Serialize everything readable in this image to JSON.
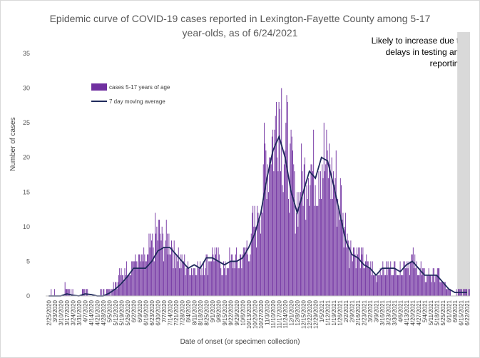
{
  "chart_data": {
    "type": "bar",
    "title": "Epidemic curve of COVID-19 cases reported in Lexington-Fayette County among 5-17 year-olds, as of 6/24/2021",
    "title_lines": [
      "Epidemic curve of COVID-19 cases reported in Lexington-Fayette County among 5-17",
      "year-olds, as of 6/24/2021"
    ],
    "xlabel": "Date of onset (or specimen collection)",
    "ylabel": "Number of cases",
    "ylim": [
      0,
      35
    ],
    "yticks": [
      0,
      5,
      10,
      15,
      20,
      25,
      30,
      35
    ],
    "grid": false,
    "legend_position": "top-left",
    "colors": {
      "bar": "#7030a0",
      "line": "#1f2a5c",
      "shaded_region": "#d9d9d9"
    },
    "x_tick_labels": [
      "2/25/2020",
      "3/3/2020",
      "3/10/2020",
      "3/17/2020",
      "3/24/2020",
      "3/31/2020",
      "4/7/2020",
      "4/14/2020",
      "4/21/2020",
      "4/28/2020",
      "5/5/2020",
      "5/12/2020",
      "5/19/2020",
      "5/26/2020",
      "6/2/2020",
      "6/9/2020",
      "6/16/2020",
      "6/23/2020",
      "6/30/2020",
      "7/7/2020",
      "7/14/2020",
      "7/21/2020",
      "7/28/2020",
      "8/4/2020",
      "8/11/2020",
      "8/18/2020",
      "8/25/2020",
      "9/1/2020",
      "9/8/2020",
      "9/15/2020",
      "9/22/2020",
      "9/29/2020",
      "10/6/2020",
      "10/13/2020",
      "10/20/2020",
      "10/27/2020",
      "11/3/2020",
      "11/10/2020",
      "11/17/2020",
      "11/24/2020",
      "12/1/2020",
      "12/8/2020",
      "12/15/2020",
      "12/22/2020",
      "12/29/2020",
      "1/5/2021",
      "1/12/2021",
      "1/19/2021",
      "1/26/2021",
      "2/2/2021",
      "2/9/2021",
      "2/16/2021",
      "2/23/2021",
      "3/2/2021",
      "3/9/2021",
      "3/16/2021",
      "3/23/2021",
      "3/30/2021",
      "4/6/2021",
      "4/13/2021",
      "4/20/2021",
      "4/27/2021",
      "5/4/2021",
      "5/11/2021",
      "5/18/2021",
      "5/25/2021",
      "6/1/2021",
      "6/8/2021",
      "6/15/2021",
      "6/22/2021"
    ],
    "annotation": {
      "text_lines": [
        "Likely to increase due to",
        "delays in testing and",
        "reporting"
      ],
      "shaded_from": "6/10/2021",
      "shaded_to": "6/24/2021"
    },
    "weekly_bar_values": [
      0,
      0,
      0,
      1,
      0,
      0,
      1,
      0,
      0,
      0,
      1,
      2,
      3,
      4,
      5,
      5,
      5,
      7,
      9,
      8,
      8,
      6,
      5,
      4,
      4,
      4,
      5,
      6,
      5,
      4,
      5,
      5,
      6,
      7,
      10,
      14,
      20,
      23,
      28,
      22,
      18,
      14,
      17,
      19,
      18,
      20,
      19,
      17,
      14,
      10,
      7,
      6,
      5,
      4,
      3,
      4,
      4,
      4,
      4,
      5,
      5,
      4,
      3,
      3,
      3,
      2,
      1,
      0,
      1,
      1
    ],
    "series": [
      {
        "name": "cases 5-17 years of age",
        "type": "bar",
        "weekly_values": "weekly_bar_values"
      },
      {
        "name": "7 day moving average",
        "type": "line",
        "values": [
          0,
          0,
          0,
          0.3,
          0.1,
          0,
          0.3,
          0.2,
          0,
          0,
          0.4,
          1,
          1.8,
          2.8,
          4,
          4,
          4,
          5,
          6.5,
          7,
          7,
          6,
          5,
          4,
          4.5,
          4,
          5.5,
          5.5,
          5,
          4.5,
          5,
          5,
          5.5,
          7,
          9,
          12,
          17,
          21,
          23,
          20,
          15,
          12,
          15,
          18,
          17,
          20,
          19.5,
          16,
          12,
          8,
          6,
          5.5,
          4.5,
          4,
          3,
          4,
          4,
          4,
          3.5,
          4.5,
          5,
          4,
          3,
          3,
          3,
          2,
          1,
          0.5,
          0.5,
          0.5
        ]
      }
    ],
    "legend": [
      "cases 5-17 years of age",
      "7 day moving average"
    ]
  }
}
